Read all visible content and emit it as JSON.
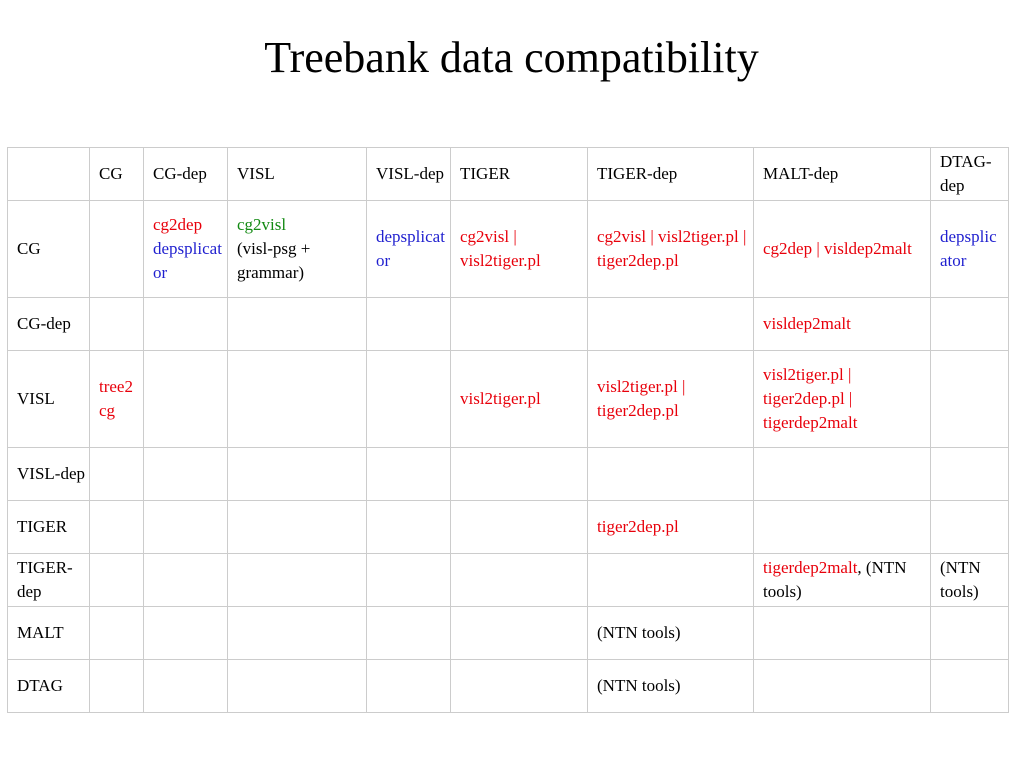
{
  "title": "Treebank data compatibility",
  "colors": {
    "red": "#e8000b",
    "blue": "#1f1fcf",
    "green": "#128a12",
    "border": "#cccccc"
  },
  "header": [
    "",
    "CG",
    "CG-dep",
    "VISL",
    "VISL-dep",
    "TIGER",
    "TIGER-dep",
    "MALT-dep",
    "DTAG-dep"
  ],
  "rows": [
    {
      "label": "CG",
      "cells": [
        [],
        [
          {
            "text": "cg2dep",
            "color": "red"
          },
          {
            "text": "depsplicator",
            "color": "blue"
          }
        ],
        [
          {
            "text": "cg2visl",
            "color": "green"
          },
          {
            "text": "(visl-psg + grammar)",
            "color": "black"
          }
        ],
        [
          {
            "text": "depsplicator",
            "color": "blue"
          }
        ],
        [
          {
            "text": "cg2visl | visl2tiger.pl",
            "color": "red"
          }
        ],
        [
          {
            "text": "cg2visl | visl2tiger.pl | tiger2dep.pl",
            "color": "red"
          }
        ],
        [
          {
            "text": "cg2dep | visldep2malt",
            "color": "red"
          }
        ],
        [
          {
            "text": "depsplicator",
            "color": "blue"
          }
        ]
      ]
    },
    {
      "label": "CG-dep",
      "cells": [
        [],
        [],
        [],
        [],
        [],
        [],
        [
          {
            "text": "visldep2malt",
            "color": "red"
          }
        ],
        []
      ]
    },
    {
      "label": "VISL",
      "cells": [
        [
          {
            "text": "tree2cg",
            "color": "red"
          }
        ],
        [],
        [],
        [],
        [
          {
            "text": "visl2tiger.pl",
            "color": "red"
          }
        ],
        [
          {
            "text": "visl2tiger.pl | tiger2dep.pl",
            "color": "red"
          }
        ],
        [
          {
            "text": "visl2tiger.pl | tiger2dep.pl | tigerdep2malt",
            "color": "red"
          }
        ],
        []
      ]
    },
    {
      "label": "VISL-dep",
      "cells": [
        [],
        [],
        [],
        [],
        [],
        [],
        [],
        []
      ]
    },
    {
      "label": "TIGER",
      "cells": [
        [],
        [],
        [],
        [],
        [],
        [
          {
            "text": "tiger2dep.pl",
            "color": "red"
          }
        ],
        [],
        []
      ]
    },
    {
      "label": "TIGER-dep",
      "cells": [
        [],
        [],
        [],
        [],
        [],
        [],
        [
          {
            "text": "tigerdep2malt",
            "color": "red"
          },
          {
            "text": ", (NTN tools)",
            "color": "black"
          }
        ],
        [
          {
            "text": "(NTN tools)",
            "color": "black"
          }
        ]
      ]
    },
    {
      "label": "MALT",
      "cells": [
        [],
        [],
        [],
        [],
        [],
        [
          {
            "text": "(NTN tools)",
            "color": "black"
          }
        ],
        [],
        []
      ]
    },
    {
      "label": "DTAG",
      "cells": [
        [],
        [],
        [],
        [],
        [],
        [
          {
            "text": "(NTN tools)",
            "color": "black"
          }
        ],
        [],
        []
      ]
    }
  ]
}
